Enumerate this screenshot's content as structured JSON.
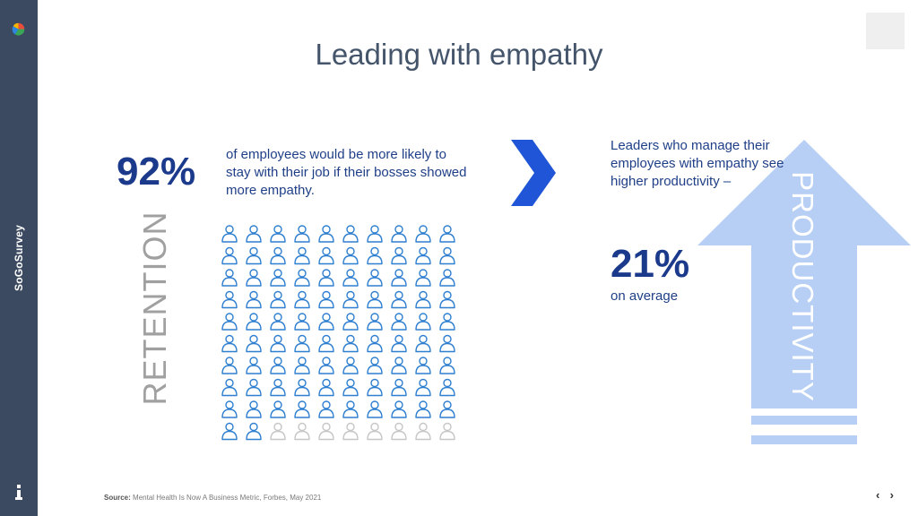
{
  "brand": "SoGoSurvey",
  "title": "Leading with empathy",
  "left": {
    "percent": "92%",
    "description": "of employees would be more likely to stay with their job if their bosses showed more empathy.",
    "vertical_label": "RETENTION",
    "people_total": 100,
    "people_highlighted": 92,
    "highlight_color": "#2f7fd0",
    "muted_color": "#c6c6c6"
  },
  "right": {
    "description": "Leaders who manage their employees with empathy see higher productivity –",
    "percent": "21%",
    "sub": "on average",
    "vertical_label": "PRODUCTIVITY",
    "arrow_color": "#b7cff5"
  },
  "source": {
    "label": "Source:",
    "text": "Mental Health Is Now A Business Metric, Forbes, May 2021"
  },
  "nav": {
    "prev": "‹",
    "next": "›"
  },
  "icons": {
    "logo": "pie-chart-logo-icon",
    "info": "info-icon",
    "chevron": "chevron-right-icon",
    "arrow": "up-arrow-icon",
    "person": "person-outline-icon"
  }
}
